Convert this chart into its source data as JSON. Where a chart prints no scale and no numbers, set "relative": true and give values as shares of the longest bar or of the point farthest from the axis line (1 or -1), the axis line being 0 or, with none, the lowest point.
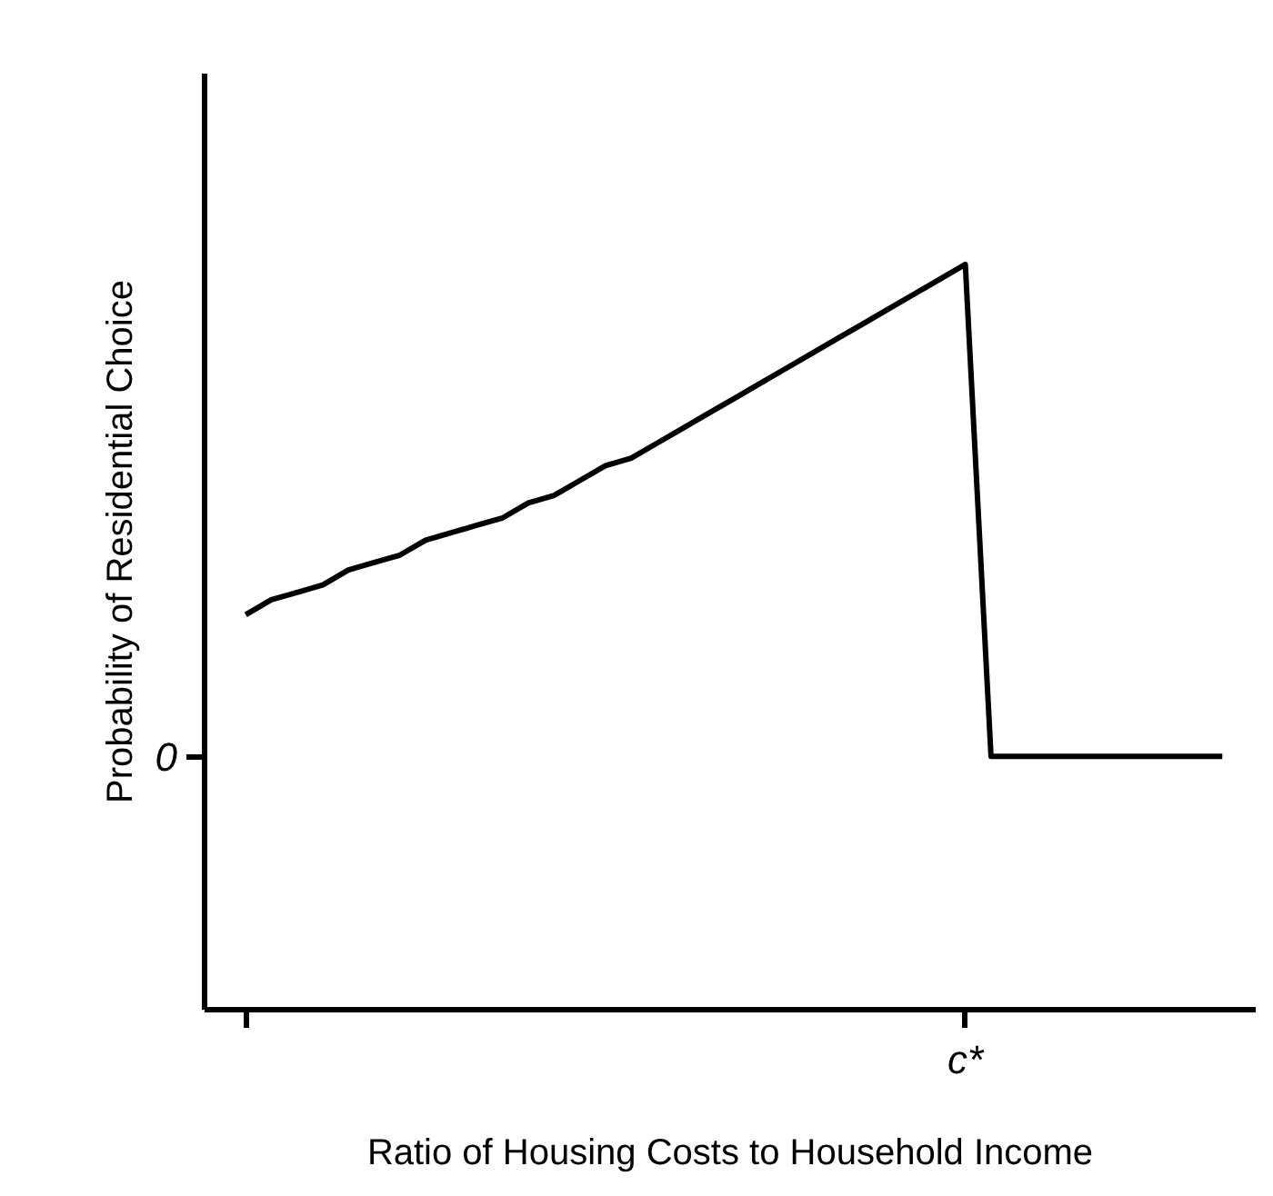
{
  "chart_data": {
    "type": "line",
    "relative": true,
    "xlabel": "Ratio of Housing Costs to Household Income",
    "ylabel": "Probability of Residential Choice",
    "annotations": [
      "0",
      "c*"
    ],
    "categories": [
      null,
      null,
      null,
      null,
      null,
      null,
      null,
      null,
      null,
      null,
      null,
      null,
      null,
      null,
      null,
      null,
      null,
      null,
      null,
      null,
      null,
      null,
      null,
      null,
      null,
      null,
      null,
      null,
      null,
      null,
      null,
      null,
      null,
      null,
      null,
      null,
      null,
      null,
      null
    ],
    "series": [
      {
        "color": "#000000",
        "values": [
          0.53,
          0.55,
          0.56,
          0.57,
          0.59,
          0.6,
          0.61,
          0.63,
          0.64,
          0.65,
          0.66,
          0.68,
          0.69,
          0.71,
          0.73,
          0.74,
          0.76,
          0.78,
          0.8,
          0.82,
          0.84,
          0.86,
          0.88,
          0.9,
          0.92,
          0.94,
          0.96,
          0.98,
          1.0,
          0.34,
          0.34,
          0.34,
          0.34,
          0.34,
          0.34,
          0.34,
          0.34,
          0.34,
          0.34
        ]
      }
    ],
    "grid": false,
    "marker": "none",
    "line_style": "solid"
  }
}
